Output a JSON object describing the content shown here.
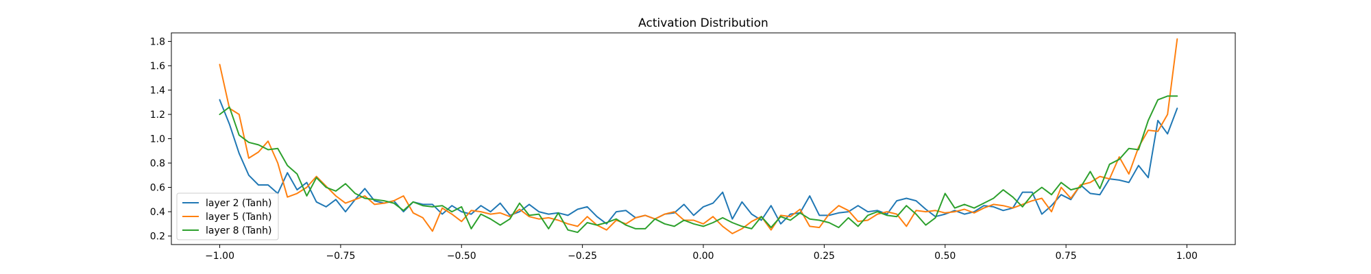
{
  "chart_data": {
    "type": "line",
    "title": "Activation Distribution",
    "xlabel": "",
    "ylabel": "",
    "xlim": [
      -1.1,
      1.1
    ],
    "ylim": [
      0.13,
      1.87
    ],
    "x_ticks": [
      -1.0,
      -0.75,
      -0.5,
      -0.25,
      0.0,
      0.25,
      0.5,
      0.75,
      1.0
    ],
    "x_tick_labels": [
      "−1.00",
      "−0.75",
      "−0.50",
      "−0.25",
      "0.00",
      "0.25",
      "0.50",
      "0.75",
      "1.00"
    ],
    "y_ticks": [
      0.2,
      0.4,
      0.6,
      0.8,
      1.0,
      1.2,
      1.4,
      1.6,
      1.8
    ],
    "y_tick_labels": [
      "0.2",
      "0.4",
      "0.6",
      "0.8",
      "1.0",
      "1.2",
      "1.4",
      "1.6",
      "1.8"
    ],
    "grid": false,
    "legend_position": "lower-left",
    "x": [
      -1.0,
      -0.98,
      -0.96,
      -0.94,
      -0.92,
      -0.9,
      -0.88,
      -0.86,
      -0.84,
      -0.82,
      -0.8,
      -0.78,
      -0.76,
      -0.74,
      -0.72,
      -0.7,
      -0.68,
      -0.66,
      -0.64,
      -0.62,
      -0.6,
      -0.58,
      -0.56,
      -0.54,
      -0.52,
      -0.5,
      -0.48,
      -0.46,
      -0.44,
      -0.42,
      -0.4,
      -0.38,
      -0.36,
      -0.34,
      -0.32,
      -0.3,
      -0.28,
      -0.26,
      -0.24,
      -0.22,
      -0.2,
      -0.18,
      -0.16,
      -0.14,
      -0.12,
      -0.1,
      -0.08,
      -0.06,
      -0.04,
      -0.02,
      0.0,
      0.02,
      0.04,
      0.06,
      0.08,
      0.1,
      0.12,
      0.14,
      0.16,
      0.18,
      0.2,
      0.22,
      0.24,
      0.26,
      0.28,
      0.3,
      0.32,
      0.34,
      0.36,
      0.38,
      0.4,
      0.42,
      0.44,
      0.46,
      0.48,
      0.5,
      0.52,
      0.54,
      0.56,
      0.58,
      0.6,
      0.62,
      0.64,
      0.66,
      0.68,
      0.7,
      0.72,
      0.74,
      0.76,
      0.78,
      0.8,
      0.82,
      0.84,
      0.86,
      0.88,
      0.9,
      0.92,
      0.94,
      0.96,
      0.98
    ],
    "series": [
      {
        "name": "layer 2 (Tanh)",
        "color": "#1f77b4",
        "values": [
          1.32,
          1.12,
          0.88,
          0.7,
          0.62,
          0.62,
          0.55,
          0.72,
          0.58,
          0.64,
          0.48,
          0.44,
          0.5,
          0.4,
          0.5,
          0.59,
          0.49,
          0.47,
          0.49,
          0.4,
          0.48,
          0.46,
          0.46,
          0.38,
          0.45,
          0.4,
          0.38,
          0.45,
          0.4,
          0.47,
          0.37,
          0.4,
          0.46,
          0.4,
          0.38,
          0.39,
          0.37,
          0.42,
          0.44,
          0.36,
          0.3,
          0.4,
          0.41,
          0.35,
          0.37,
          0.34,
          0.38,
          0.39,
          0.46,
          0.37,
          0.44,
          0.47,
          0.56,
          0.34,
          0.48,
          0.38,
          0.33,
          0.45,
          0.3,
          0.38,
          0.39,
          0.53,
          0.37,
          0.37,
          0.39,
          0.4,
          0.45,
          0.4,
          0.41,
          0.38,
          0.49,
          0.51,
          0.49,
          0.42,
          0.36,
          0.38,
          0.41,
          0.38,
          0.4,
          0.45,
          0.44,
          0.41,
          0.43,
          0.56,
          0.56,
          0.38,
          0.45,
          0.54,
          0.5,
          0.62,
          0.55,
          0.54,
          0.67,
          0.66,
          0.64,
          0.78,
          0.68,
          1.15,
          1.04,
          1.25
        ]
      },
      {
        "name": "layer 5 (Tanh)",
        "color": "#ff7f0e",
        "values": [
          1.61,
          1.25,
          1.2,
          0.84,
          0.89,
          0.98,
          0.8,
          0.52,
          0.55,
          0.6,
          0.69,
          0.61,
          0.53,
          0.47,
          0.5,
          0.53,
          0.46,
          0.47,
          0.49,
          0.53,
          0.39,
          0.35,
          0.24,
          0.43,
          0.38,
          0.32,
          0.41,
          0.4,
          0.38,
          0.39,
          0.36,
          0.42,
          0.36,
          0.34,
          0.35,
          0.33,
          0.3,
          0.28,
          0.36,
          0.29,
          0.25,
          0.33,
          0.3,
          0.35,
          0.37,
          0.34,
          0.38,
          0.4,
          0.33,
          0.33,
          0.3,
          0.36,
          0.28,
          0.22,
          0.26,
          0.32,
          0.36,
          0.25,
          0.37,
          0.36,
          0.42,
          0.28,
          0.27,
          0.38,
          0.45,
          0.41,
          0.32,
          0.33,
          0.38,
          0.4,
          0.38,
          0.28,
          0.41,
          0.4,
          0.41,
          0.39,
          0.4,
          0.42,
          0.39,
          0.43,
          0.46,
          0.45,
          0.43,
          0.46,
          0.49,
          0.51,
          0.4,
          0.6,
          0.51,
          0.62,
          0.64,
          0.69,
          0.67,
          0.85,
          0.71,
          0.93,
          1.07,
          1.06,
          1.2,
          1.82
        ]
      },
      {
        "name": "layer 8 (Tanh)",
        "color": "#2ca02c",
        "values": [
          1.2,
          1.26,
          1.03,
          0.97,
          0.95,
          0.91,
          0.92,
          0.78,
          0.71,
          0.53,
          0.68,
          0.6,
          0.57,
          0.63,
          0.55,
          0.51,
          0.5,
          0.49,
          0.47,
          0.41,
          0.48,
          0.45,
          0.44,
          0.45,
          0.4,
          0.44,
          0.26,
          0.38,
          0.34,
          0.29,
          0.34,
          0.47,
          0.37,
          0.38,
          0.26,
          0.39,
          0.25,
          0.23,
          0.31,
          0.29,
          0.31,
          0.34,
          0.29,
          0.26,
          0.26,
          0.34,
          0.3,
          0.28,
          0.33,
          0.3,
          0.28,
          0.31,
          0.35,
          0.31,
          0.28,
          0.26,
          0.36,
          0.27,
          0.36,
          0.33,
          0.39,
          0.34,
          0.33,
          0.31,
          0.27,
          0.35,
          0.28,
          0.37,
          0.4,
          0.37,
          0.36,
          0.45,
          0.38,
          0.29,
          0.35,
          0.55,
          0.43,
          0.46,
          0.43,
          0.47,
          0.51,
          0.58,
          0.52,
          0.44,
          0.54,
          0.6,
          0.54,
          0.64,
          0.58,
          0.6,
          0.73,
          0.59,
          0.79,
          0.83,
          0.92,
          0.91,
          1.15,
          1.32,
          1.35,
          1.35
        ]
      }
    ]
  }
}
